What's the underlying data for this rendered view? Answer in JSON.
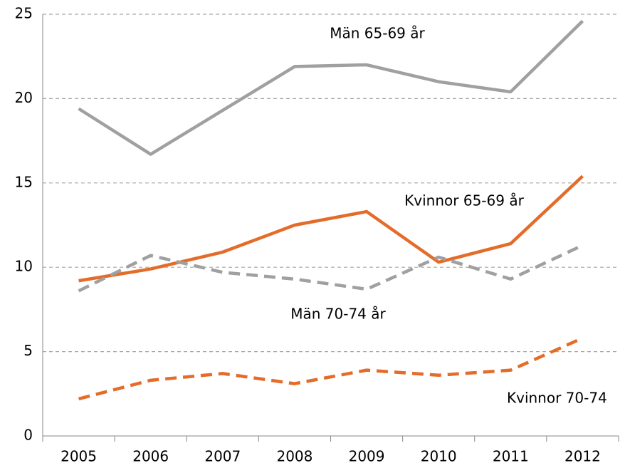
{
  "chart_data": {
    "type": "line",
    "categories": [
      "2005",
      "2006",
      "2007",
      "2008",
      "2009",
      "2010",
      "2011",
      "2012"
    ],
    "series": [
      {
        "name": "Män 65-69 år",
        "color": "#a0a0a0",
        "dashed": false,
        "values": [
          19.4,
          16.7,
          19.3,
          21.9,
          22.0,
          21.0,
          20.4,
          24.6
        ]
      },
      {
        "name": "Kvinnor 65-69 år",
        "color": "#e46c2a",
        "dashed": false,
        "values": [
          9.2,
          9.9,
          10.9,
          12.5,
          13.3,
          10.3,
          11.4,
          15.4
        ]
      },
      {
        "name": "Män 70-74 år",
        "color": "#a0a0a0",
        "dashed": true,
        "values": [
          8.6,
          10.7,
          9.7,
          9.3,
          8.7,
          10.6,
          9.3,
          11.3
        ]
      },
      {
        "name": "Kvinnor 70-74",
        "color": "#e46c2a",
        "dashed": true,
        "values": [
          2.2,
          3.3,
          3.7,
          3.1,
          3.9,
          3.6,
          3.9,
          5.8
        ]
      }
    ],
    "ylim": [
      0,
      25
    ],
    "yticks": [
      0,
      5,
      10,
      15,
      20,
      25
    ],
    "grid": true
  }
}
